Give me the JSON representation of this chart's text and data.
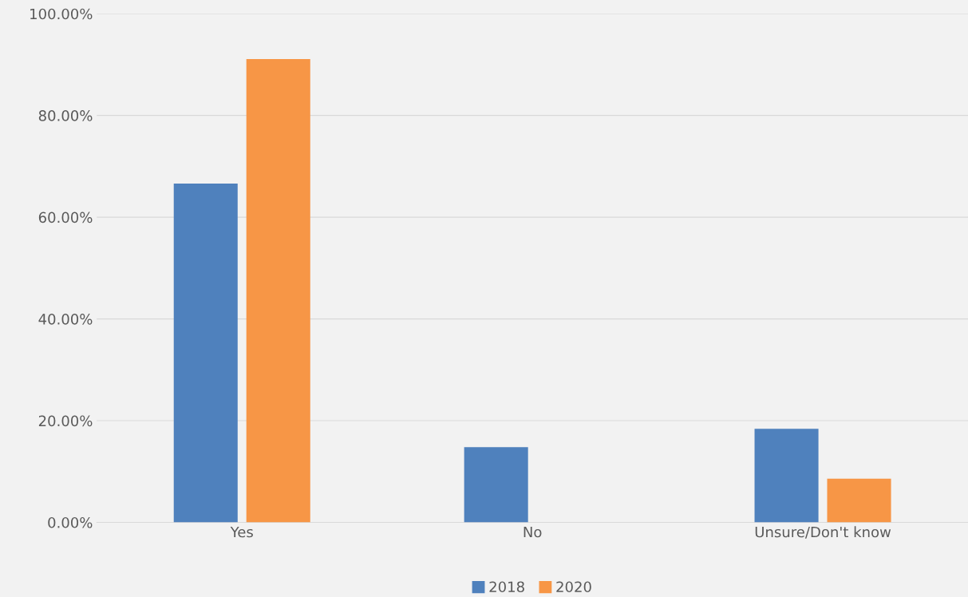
{
  "chart_data": {
    "type": "bar",
    "categories": [
      "Yes",
      "No",
      "Unsure/Don't know"
    ],
    "series": [
      {
        "name": "2018",
        "color": "#4f81bd",
        "values": [
          66.6,
          14.8,
          18.4
        ]
      },
      {
        "name": "2020",
        "color": "#f79646",
        "values": [
          91.1,
          0,
          8.6
        ]
      }
    ],
    "ylim": [
      0,
      100
    ],
    "yticks": [
      {
        "value": 0,
        "label": "0.00%"
      },
      {
        "value": 20,
        "label": "20.00%"
      },
      {
        "value": 40,
        "label": "40.00%"
      },
      {
        "value": 60,
        "label": "60.00%"
      },
      {
        "value": 80,
        "label": "80.00%"
      },
      {
        "value": 100,
        "label": "100.00%"
      }
    ],
    "grid": "y",
    "legend": "bottom"
  }
}
